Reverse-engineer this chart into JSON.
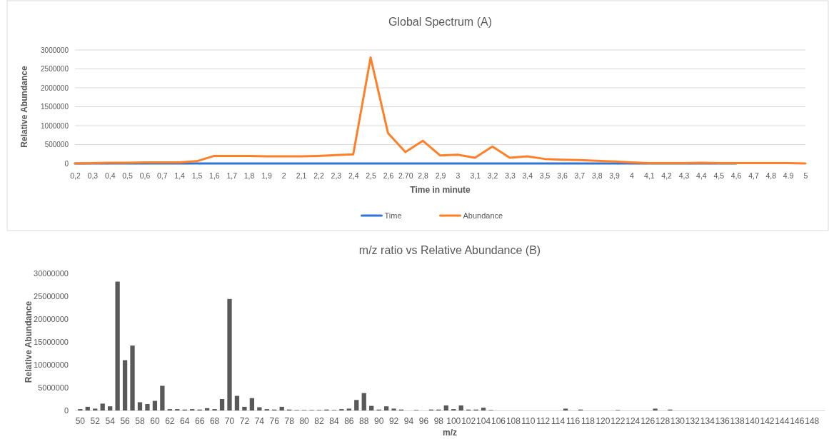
{
  "chart_data": [
    {
      "type": "line",
      "title": "Global Spectrum (A)",
      "xlabel": "Time in minute",
      "ylabel": "Relative Abundance",
      "categories": [
        "0,2",
        "0,3",
        "0,4",
        "0,5",
        "0,6",
        "0,7",
        "1,4",
        "1,5",
        "1,6",
        "1,7",
        "1,8",
        "1,9",
        "2",
        "2,1",
        "2,2",
        "2,3",
        "2,4",
        "2,5",
        "2,6",
        "2.70",
        "2,8",
        "2,9",
        "3",
        "3,1",
        "3,2",
        "3,3",
        "3,4",
        "3,5",
        "3,6",
        "3,7",
        "3,8",
        "3,9",
        "4",
        "4,1",
        "4,2",
        "4,3",
        "4,4",
        "4,5",
        "4,6",
        "4,7",
        "4,8",
        "4.9",
        "5"
      ],
      "series": [
        {
          "name": "Time",
          "color": "#2e75d6",
          "values": [
            0,
            0,
            0,
            0,
            0,
            0,
            0,
            0,
            0,
            0,
            0,
            0,
            0,
            0,
            0,
            0,
            0,
            0,
            0,
            0,
            0,
            0,
            0,
            0,
            0,
            0,
            0,
            0,
            0,
            0,
            0,
            0,
            0,
            0,
            0,
            0,
            0,
            0,
            0,
            null,
            null,
            null,
            null
          ]
        },
        {
          "name": "Abundance",
          "color": "#ff7f27",
          "values": [
            0,
            10000,
            20000,
            20000,
            30000,
            30000,
            30000,
            60000,
            200000,
            200000,
            200000,
            190000,
            190000,
            190000,
            200000,
            220000,
            240000,
            2800000,
            800000,
            300000,
            600000,
            210000,
            230000,
            150000,
            450000,
            150000,
            190000,
            120000,
            100000,
            90000,
            70000,
            50000,
            30000,
            10000,
            10000,
            10000,
            20000,
            10000,
            10000,
            10000,
            10000,
            10000,
            0
          ]
        }
      ],
      "ylim": [
        0,
        3000000
      ],
      "yticks": [
        0,
        500000,
        1000000,
        1500000,
        2000000,
        2500000,
        3000000
      ],
      "grid": "y",
      "legend": "bottom"
    },
    {
      "type": "bar",
      "title": "m/z ratio vs Relative Abundance (B)",
      "xlabel": "m/z",
      "ylabel": "Relative Abundance",
      "categories": [
        "50",
        null,
        "52",
        null,
        "54",
        null,
        "56",
        null,
        "58",
        null,
        "60",
        null,
        "62",
        null,
        "64",
        null,
        "66",
        null,
        "68",
        null,
        "70",
        null,
        "72",
        null,
        "74",
        null,
        "76",
        null,
        "78",
        null,
        "80",
        null,
        "82",
        null,
        "84",
        null,
        "86",
        null,
        "88",
        null,
        "90",
        null,
        "92",
        null,
        "94",
        null,
        "96",
        null,
        "98",
        null,
        "100",
        null,
        "102",
        null,
        "104",
        null,
        "106",
        null,
        "108",
        null,
        "110",
        null,
        "112",
        null,
        "114",
        null,
        "116",
        null,
        "118",
        null,
        "120",
        null,
        "122",
        null,
        "124",
        null,
        "126",
        null,
        "128",
        null,
        "130",
        null,
        "132",
        null,
        "134",
        null,
        "136",
        null,
        "138",
        null,
        "140",
        null,
        "142",
        null,
        "144",
        null,
        "146",
        null,
        "148",
        null
      ],
      "values": [
        300000,
        800000,
        400000,
        1500000,
        900000,
        28200000,
        11000000,
        14200000,
        1800000,
        1400000,
        2100000,
        5400000,
        300000,
        300000,
        200000,
        300000,
        200000,
        500000,
        300000,
        2500000,
        24400000,
        3200000,
        800000,
        2700000,
        700000,
        300000,
        200000,
        800000,
        200000,
        100000,
        100000,
        100000,
        100000,
        200000,
        100000,
        300000,
        400000,
        2300000,
        3800000,
        1000000,
        200000,
        900000,
        400000,
        200000,
        0,
        100000,
        0,
        200000,
        200000,
        1100000,
        300000,
        1100000,
        200000,
        200000,
        600000,
        100000,
        0,
        0,
        0,
        0,
        0,
        0,
        0,
        0,
        0,
        400000,
        0,
        200000,
        0,
        0,
        0,
        0,
        100000,
        0,
        0,
        0,
        0,
        400000,
        0,
        200000,
        0,
        0,
        0,
        0,
        0,
        0,
        0,
        0,
        0,
        0,
        0,
        0,
        0,
        0,
        0,
        0,
        0,
        0,
        0,
        0
      ],
      "color": "#595959",
      "ylim": [
        0,
        30000000
      ],
      "yticks": [
        0,
        5000000,
        10000000,
        15000000,
        20000000,
        25000000,
        30000000
      ]
    }
  ]
}
